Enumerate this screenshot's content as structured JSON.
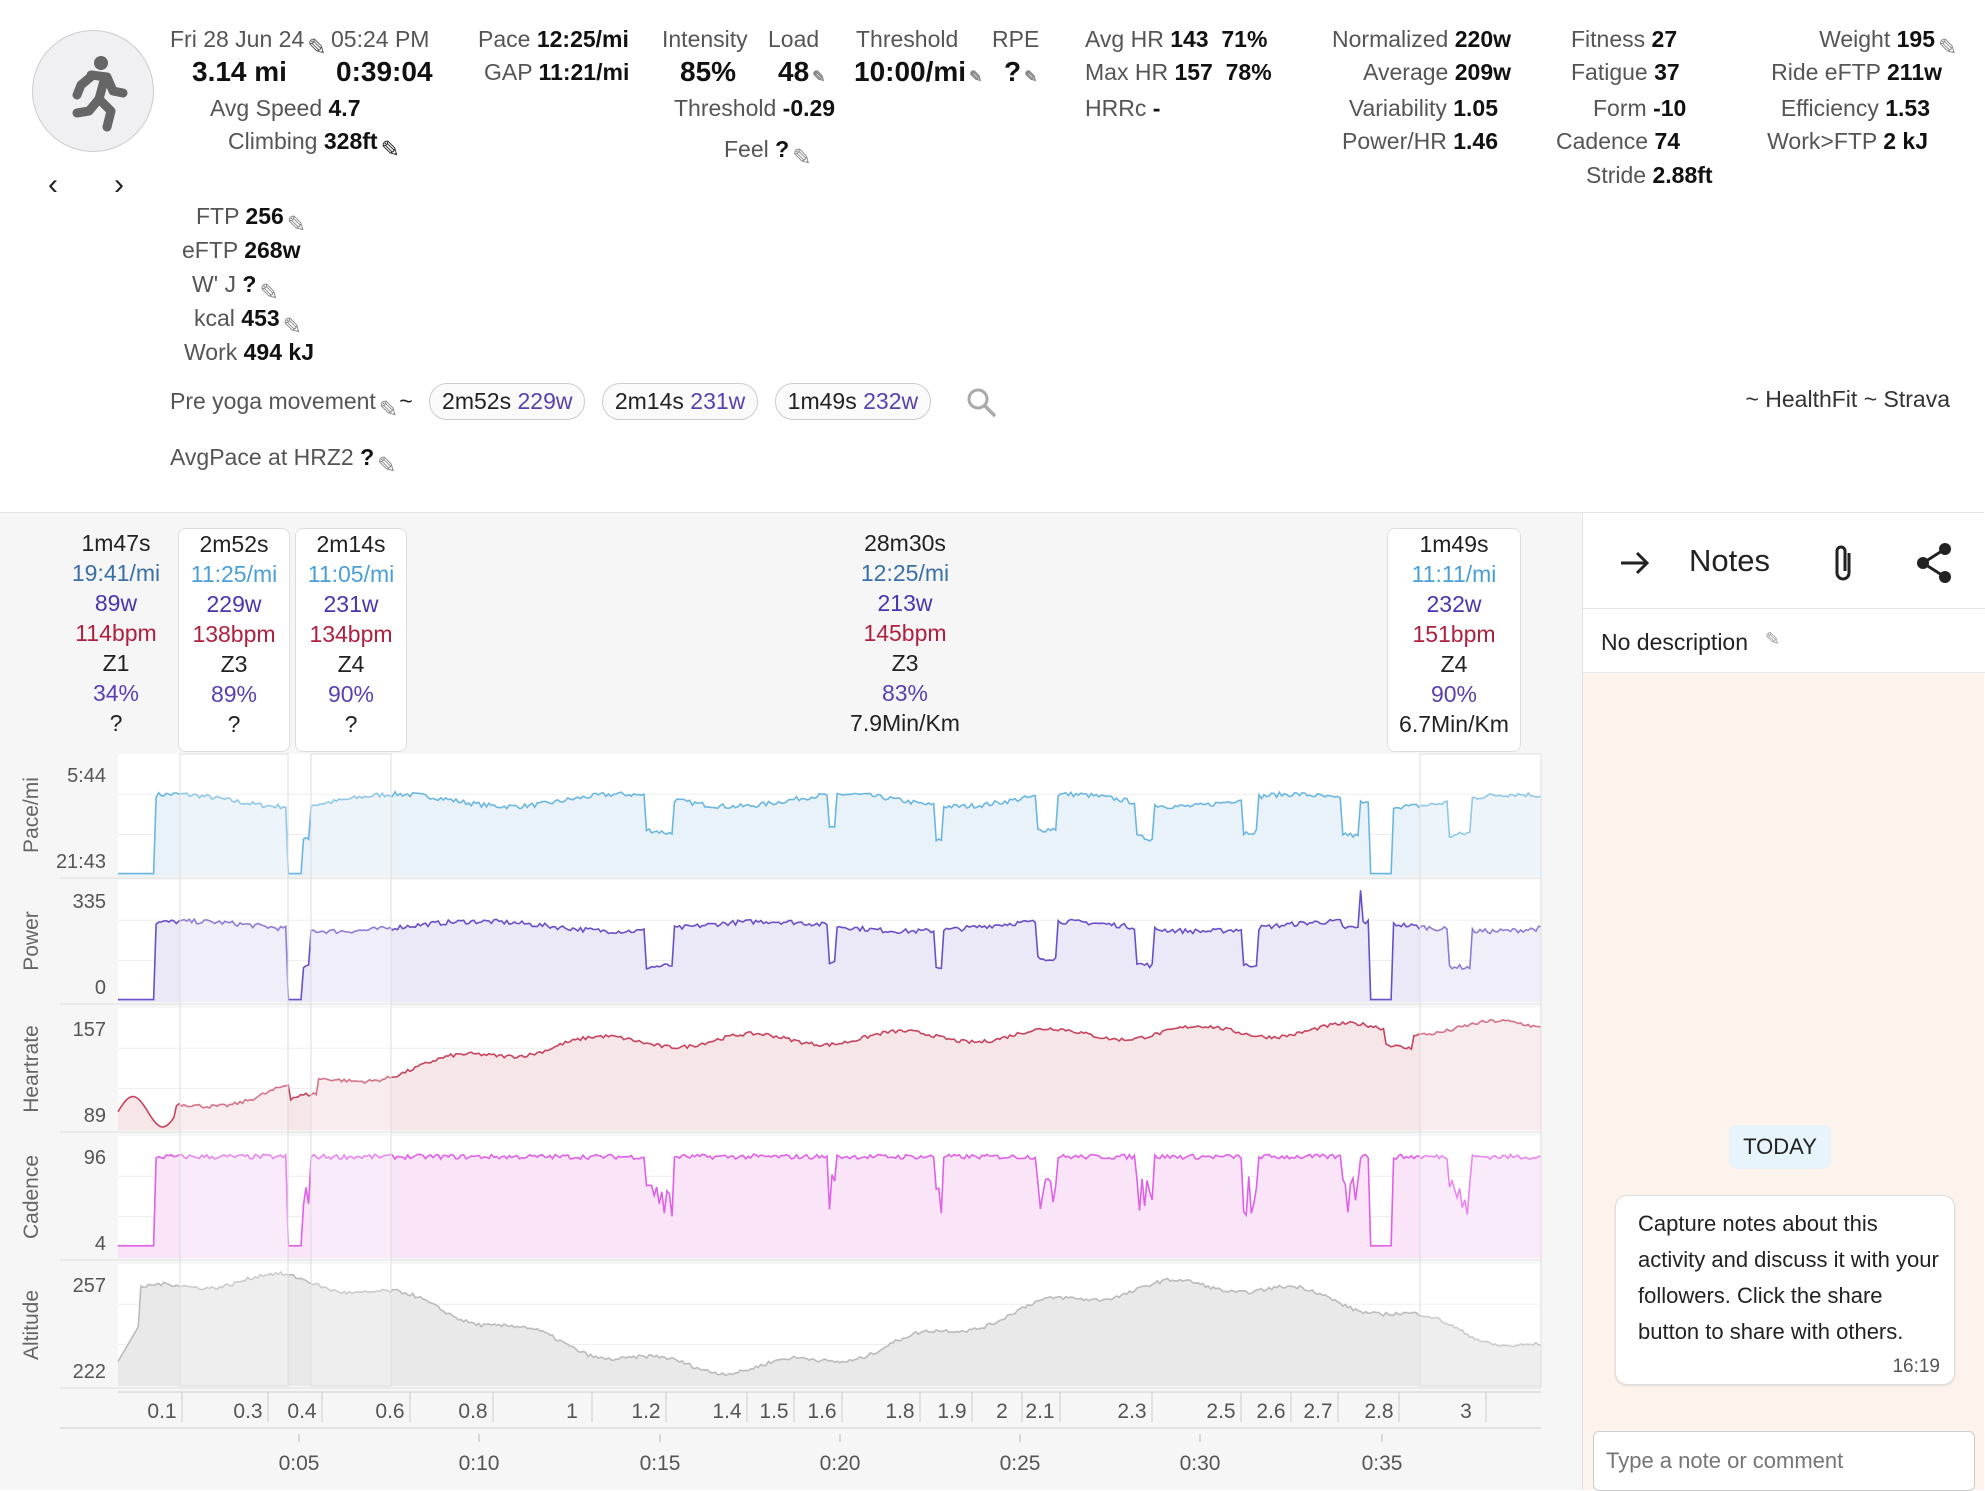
{
  "header": {
    "date": "Fri 28 Jun 24",
    "time": "05:24 PM",
    "distance": "3.14 mi",
    "duration": "0:39:04",
    "avg_speed_label": "Avg Speed",
    "avg_speed": "4.7",
    "climbing_label": "Climbing",
    "climbing": "328ft",
    "pace_label": "Pace",
    "pace": "12:25/mi",
    "gap_label": "GAP",
    "gap": "11:21/mi",
    "intensity_label": "Intensity",
    "intensity": "85%",
    "load_label": "Load",
    "load": "48",
    "threshold_label": "Threshold",
    "threshold": "10:00/mi",
    "rpe_label": "RPE",
    "rpe": "?",
    "threshold2_label": "Threshold",
    "threshold2": "-0.29",
    "feel_label": "Feel",
    "feel": "?",
    "avghr_label": "Avg HR",
    "avghr": "143",
    "avghr_pct": "71%",
    "maxhr_label": "Max HR",
    "maxhr": "157",
    "maxhr_pct": "78%",
    "hrrc_label": "HRRc",
    "hrrc": "-",
    "normalized_label": "Normalized",
    "normalized": "220w",
    "average_label": "Average",
    "average": "209w",
    "variability_label": "Variability",
    "variability": "1.05",
    "powerhr_label": "Power/HR",
    "powerhr": "1.46",
    "fitness_label": "Fitness",
    "fitness": "27",
    "fatigue_label": "Fatigue",
    "fatigue": "37",
    "form_label": "Form",
    "form": "-10",
    "cadence_label": "Cadence",
    "cadence": "74",
    "stride_label": "Stride",
    "stride": "2.88ft",
    "weight_label": "Weight",
    "weight": "195",
    "rideeftp_label": "Ride eFTP",
    "rideeftp": "211w",
    "efficiency_label": "Efficiency",
    "efficiency": "1.53",
    "workftp_label": "Work>FTP",
    "workftp": "2 kJ",
    "ftp_label": "FTP",
    "ftp": "256",
    "eftp_label": "eFTP",
    "eftp": "268w",
    "wj_label": "W' J",
    "wj": "?",
    "kcal_label": "kcal",
    "kcal": "453",
    "work_label": "Work",
    "work": "494 kJ",
    "name": "Pre yoga movement",
    "tilde": "~",
    "chips": [
      {
        "t": "2m52s",
        "w": "229w"
      },
      {
        "t": "2m14s",
        "w": "231w"
      },
      {
        "t": "1m49s",
        "w": "232w"
      }
    ],
    "source": "~ HealthFit ~ Strava",
    "avgpace_hrz2_label": "AvgPace at HRZ2",
    "avgpace_hrz2": "?"
  },
  "intervals": [
    {
      "dur": "1m47s",
      "pace": "19:41/mi",
      "power": "89w",
      "hr": "114bpm",
      "zone": "Z1",
      "pct": "34%",
      "extra": "?"
    },
    {
      "dur": "2m52s",
      "pace": "11:25/mi",
      "power": "229w",
      "hr": "138bpm",
      "zone": "Z3",
      "pct": "89%",
      "extra": "?"
    },
    {
      "dur": "2m14s",
      "pace": "11:05/mi",
      "power": "231w",
      "hr": "134bpm",
      "zone": "Z4",
      "pct": "90%",
      "extra": "?"
    },
    {
      "dur": "28m30s",
      "pace": "12:25/mi",
      "power": "213w",
      "hr": "145bpm",
      "zone": "Z3",
      "pct": "83%",
      "extra": "7.9Min/Km"
    },
    {
      "dur": "1m49s",
      "pace": "11:11/mi",
      "power": "232w",
      "hr": "151bpm",
      "zone": "Z4",
      "pct": "90%",
      "extra": "6.7Min/Km"
    }
  ],
  "chart_data": {
    "type": "line",
    "x_unit": "elapsed time",
    "panels": [
      {
        "name": "Pace/mi",
        "top_label": "5:44",
        "bottom_label": "21:43",
        "color": "#6bb6e0"
      },
      {
        "name": "Power",
        "top_label": "335",
        "bottom_label": "0",
        "color": "#6b4fc8"
      },
      {
        "name": "Heartrate",
        "top_label": "157",
        "bottom_label": "89",
        "color": "#c8435e"
      },
      {
        "name": "Cadence",
        "top_label": "96",
        "bottom_label": "4",
        "color": "#e060e8"
      },
      {
        "name": "Altitude",
        "top_label": "257",
        "bottom_label": "222",
        "color": "#bbbbbb"
      }
    ],
    "distance_ticks": [
      "0.1",
      "0.3",
      "0.4",
      "0.6",
      "0.8",
      "1",
      "1.2",
      "1.4",
      "1.5",
      "1.6",
      "1.8",
      "1.9",
      "2",
      "2.1",
      "2.3",
      "2.5",
      "2.6",
      "2.7",
      "2.8",
      "3"
    ],
    "time_ticks": [
      "0:05",
      "0:10",
      "0:15",
      "0:20",
      "0:25",
      "0:30",
      "0:35"
    ]
  },
  "notes": {
    "title": "Notes",
    "description": "No description",
    "today": "TODAY",
    "message": "Capture notes about this activity and discuss it with your followers. Click the share button to share with others.",
    "message_time": "16:19",
    "placeholder": "Type a note or comment"
  }
}
